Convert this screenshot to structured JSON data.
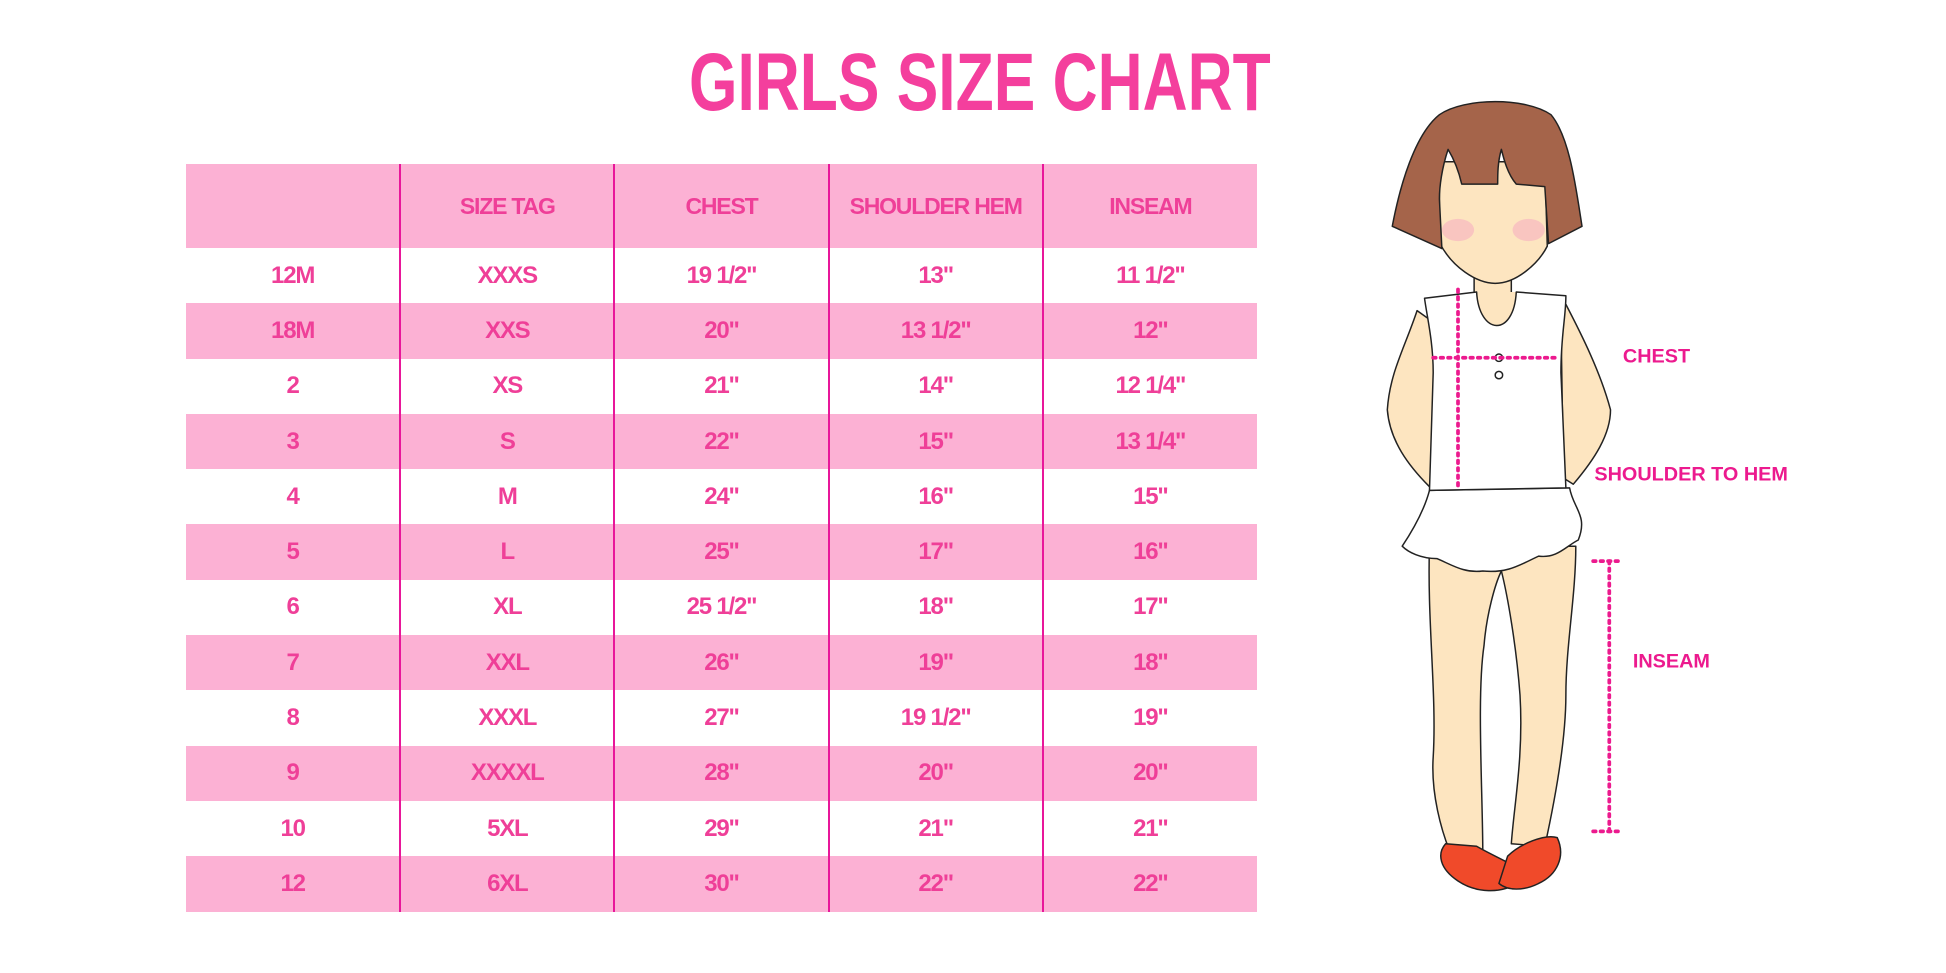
{
  "title": "GIRLS SIZE CHART",
  "table": {
    "headers": [
      "",
      "SIZE TAG",
      "CHEST",
      "SHOULDER HEM",
      "INSEAM"
    ],
    "rows": [
      [
        "12M",
        "XXXS",
        "19 1/2\"",
        "13\"",
        "11 1/2\""
      ],
      [
        "18M",
        "XXS",
        "20\"",
        "13 1/2\"",
        "12\""
      ],
      [
        "2",
        "XS",
        "21\"",
        "14\"",
        "12 1/4\""
      ],
      [
        "3",
        "S",
        "22\"",
        "15\"",
        "13 1/4\""
      ],
      [
        "4",
        "M",
        "24\"",
        "16\"",
        "15\""
      ],
      [
        "5",
        "L",
        "25\"",
        "17\"",
        "16\""
      ],
      [
        "6",
        "XL",
        "25 1/2\"",
        "18\"",
        "17\""
      ],
      [
        "7",
        "XXL",
        "26\"",
        "19\"",
        "18\""
      ],
      [
        "8",
        "XXXL",
        "27\"",
        "19 1/2\"",
        "19\""
      ],
      [
        "9",
        "XXXXL",
        "28\"",
        "20\"",
        "20\""
      ],
      [
        "10",
        "5XL",
        "29\"",
        "21\"",
        "21\""
      ],
      [
        "12",
        "6XL",
        "30\"",
        "22\"",
        "22\""
      ]
    ]
  },
  "figure": {
    "labels": {
      "chest": "CHEST",
      "shoulder_to_hem": "SHOULDER TO HEM",
      "inseam": "INSEAM"
    }
  },
  "colors": {
    "accent": "#f43f9d",
    "row_pink": "#fcb1d4",
    "divider": "#e8179a",
    "hair": "#a5644a",
    "skin": "#fde5c0",
    "shoes": "#f04a2a"
  }
}
